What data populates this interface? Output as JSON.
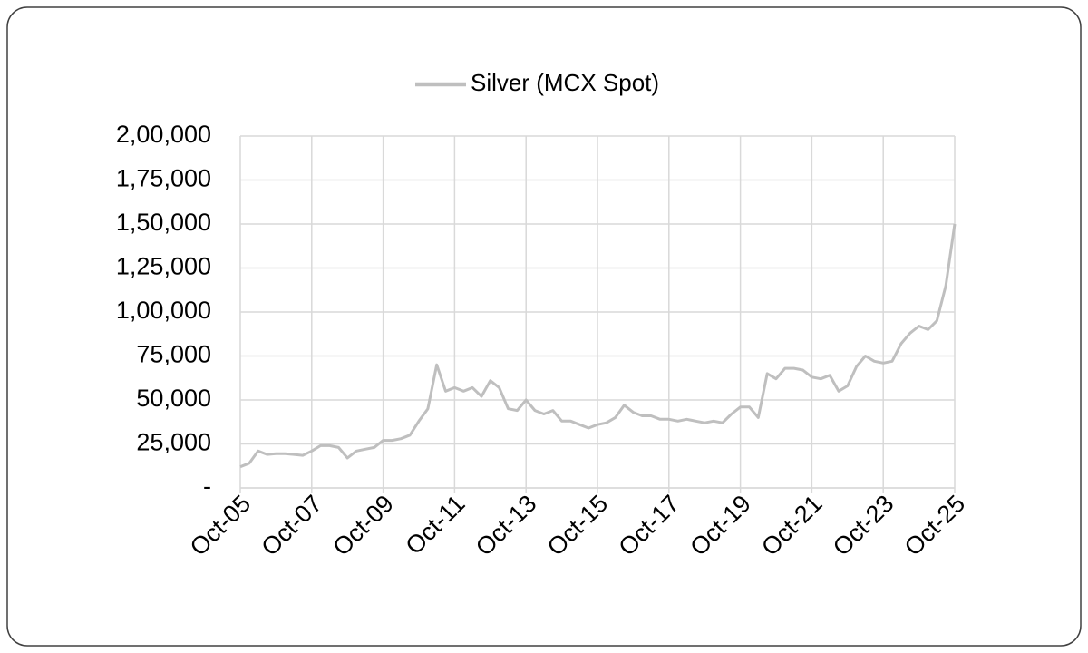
{
  "chart_data": {
    "type": "line",
    "x": [
      "Oct-05",
      "Jan-06",
      "Apr-06",
      "Jul-06",
      "Oct-06",
      "Jan-07",
      "Apr-07",
      "Jul-07",
      "Oct-07",
      "Jan-08",
      "Apr-08",
      "Jul-08",
      "Oct-08",
      "Jan-09",
      "Apr-09",
      "Jul-09",
      "Oct-09",
      "Jan-10",
      "Apr-10",
      "Jul-10",
      "Oct-10",
      "Jan-11",
      "Apr-11",
      "Jul-11",
      "Oct-11",
      "Jan-12",
      "Apr-12",
      "Jul-12",
      "Oct-12",
      "Jan-13",
      "Apr-13",
      "Jul-13",
      "Oct-13",
      "Jan-14",
      "Apr-14",
      "Jul-14",
      "Oct-14",
      "Jan-15",
      "Apr-15",
      "Jul-15",
      "Oct-15",
      "Jan-16",
      "Apr-16",
      "Jul-16",
      "Oct-16",
      "Jan-17",
      "Apr-17",
      "Jul-17",
      "Oct-17",
      "Jan-18",
      "Apr-18",
      "Jul-18",
      "Oct-18",
      "Jan-19",
      "Apr-19",
      "Jul-19",
      "Oct-19",
      "Jan-20",
      "Apr-20",
      "Jul-20",
      "Oct-20",
      "Jan-21",
      "Apr-21",
      "Jul-21",
      "Oct-21",
      "Jan-22",
      "Apr-22",
      "Jul-22",
      "Oct-22",
      "Jan-23",
      "Apr-23",
      "Jul-23",
      "Oct-23",
      "Jan-24",
      "Apr-24",
      "Jul-24",
      "Oct-24",
      "Jan-25",
      "Apr-25",
      "Jul-25",
      "Oct-25"
    ],
    "series": [
      {
        "name": "Silver (MCX Spot)",
        "color": "#bfbfbf",
        "values": [
          12000,
          14000,
          21000,
          19000,
          19500,
          19500,
          19000,
          18500,
          21000,
          24000,
          24000,
          23000,
          17000,
          21000,
          22000,
          23000,
          27000,
          27000,
          28000,
          30000,
          38000,
          45000,
          70000,
          55000,
          57000,
          55000,
          57000,
          52000,
          61000,
          57000,
          45000,
          44000,
          50000,
          44000,
          42000,
          44000,
          38000,
          38000,
          36000,
          34000,
          36000,
          37000,
          40000,
          47000,
          43000,
          41000,
          41000,
          39000,
          39000,
          38000,
          39000,
          38000,
          37000,
          38000,
          37000,
          42000,
          46000,
          46000,
          40000,
          65000,
          62000,
          68000,
          68000,
          67000,
          63000,
          62000,
          64000,
          55000,
          58000,
          69000,
          75000,
          72000,
          71000,
          72000,
          82000,
          88000,
          92000,
          90000,
          95000,
          115000,
          150000
        ]
      }
    ],
    "xticks": [
      "Oct-05",
      "Oct-07",
      "Oct-09",
      "Oct-11",
      "Oct-13",
      "Oct-15",
      "Oct-17",
      "Oct-19",
      "Oct-21",
      "Oct-23",
      "Oct-25"
    ],
    "ylim": [
      0,
      200000
    ],
    "yticks": [
      {
        "value": 0,
        "label": "-"
      },
      {
        "value": 25000,
        "label": "25,000"
      },
      {
        "value": 50000,
        "label": "50,000"
      },
      {
        "value": 75000,
        "label": "75,000"
      },
      {
        "value": 100000,
        "label": "1,00,000"
      },
      {
        "value": 125000,
        "label": "1,25,000"
      },
      {
        "value": 150000,
        "label": "1,50,000"
      },
      {
        "value": 175000,
        "label": "1,75,000"
      },
      {
        "value": 200000,
        "label": "2,00,000"
      }
    ],
    "grid": true,
    "legend": "top"
  }
}
